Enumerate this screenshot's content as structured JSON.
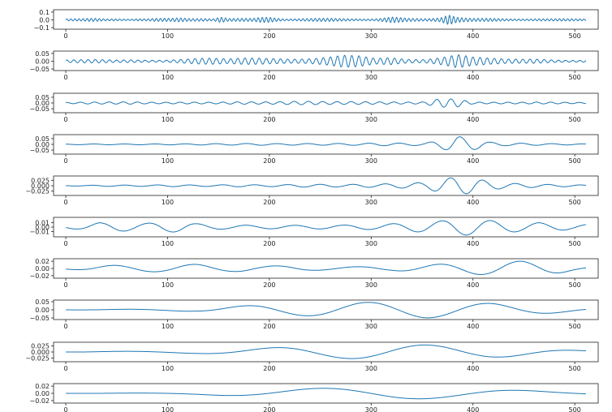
{
  "colors": {
    "line": "#1f77b4",
    "axis": "#222222"
  },
  "chart_data": [
    {
      "type": "line",
      "x_ticks": [
        0,
        100,
        200,
        300,
        400,
        500
      ],
      "xlim": [
        -12,
        523
      ],
      "ylim": [
        -0.12,
        0.13
      ],
      "y_ticks": [
        {
          "v": 0.1,
          "label": "0.1"
        },
        {
          "v": 0.0,
          "label": "0.0"
        },
        {
          "v": -0.1,
          "label": "−0.1"
        }
      ],
      "x": [
        0,
        8,
        16,
        24,
        32,
        40,
        48,
        56,
        64,
        72,
        80,
        88,
        96,
        104,
        112,
        120,
        128,
        136,
        144,
        152,
        160,
        168,
        176,
        184,
        192,
        200,
        208,
        216,
        224,
        232,
        240,
        248,
        256,
        264,
        272,
        280,
        288,
        296,
        304,
        312,
        320,
        328,
        336,
        344,
        352,
        360,
        368,
        376,
        384,
        392,
        400,
        408,
        416,
        424,
        432,
        440,
        448,
        456,
        464,
        472,
        480,
        488,
        496,
        504,
        511
      ],
      "envelope": [
        0.015,
        0.015,
        0.015,
        0.02,
        0.02,
        0.015,
        0.02,
        0.02,
        0.015,
        0.02,
        0.015,
        0.02,
        0.02,
        0.02,
        0.03,
        0.025,
        0.03,
        0.035,
        0.02,
        0.05,
        0.02,
        0.02,
        0.02,
        0.02,
        0.04,
        0.05,
        0.035,
        0.02,
        0.02,
        0.02,
        0.02,
        0.02,
        0.02,
        0.02,
        0.02,
        0.02,
        0.02,
        0.02,
        0.02,
        0.03,
        0.04,
        0.03,
        0.02,
        0.02,
        0.02,
        0.03,
        0.05,
        0.12,
        0.05,
        0.03,
        0.02,
        0.02,
        0.02,
        0.02,
        0.02,
        0.02,
        0.02,
        0.02,
        0.02,
        0.015,
        0.015,
        0.015,
        0.015,
        0.015,
        0.015
      ],
      "period": 4
    },
    {
      "type": "line",
      "x_ticks": [
        0,
        100,
        200,
        300,
        400,
        500
      ],
      "xlim": [
        -12,
        523
      ],
      "ylim": [
        -0.06,
        0.065
      ],
      "y_ticks": [
        {
          "v": 0.05,
          "label": "0.05"
        },
        {
          "v": 0.0,
          "label": "0.00"
        },
        {
          "v": -0.05,
          "label": "−0.05"
        }
      ],
      "x": [
        0,
        16,
        32,
        48,
        64,
        80,
        96,
        112,
        128,
        144,
        160,
        176,
        192,
        208,
        224,
        240,
        256,
        272,
        288,
        304,
        320,
        336,
        352,
        368,
        384,
        400,
        416,
        432,
        448,
        464,
        480,
        496,
        511
      ],
      "envelope": [
        0.008,
        0.01,
        0.012,
        0.01,
        0.015,
        0.012,
        0.01,
        0.015,
        0.02,
        0.02,
        0.015,
        0.025,
        0.03,
        0.03,
        0.025,
        0.025,
        0.03,
        0.04,
        0.035,
        0.02,
        0.03,
        0.02,
        0.02,
        0.04,
        0.06,
        0.03,
        0.02,
        0.015,
        0.015,
        0.02,
        0.015,
        0.01,
        0.01
      ],
      "period": 7
    },
    {
      "type": "line",
      "x_ticks": [
        0,
        100,
        200,
        300,
        400,
        500
      ],
      "xlim": [
        -12,
        523
      ],
      "ylim": [
        -0.085,
        0.085
      ],
      "y_ticks": [
        {
          "v": 0.05,
          "label": "0.05"
        },
        {
          "v": 0.0,
          "label": "0.00"
        },
        {
          "v": -0.05,
          "label": "−0.05"
        }
      ],
      "x": [
        0,
        16,
        32,
        48,
        64,
        80,
        96,
        112,
        128,
        144,
        160,
        176,
        192,
        208,
        224,
        240,
        256,
        272,
        288,
        304,
        320,
        336,
        352,
        368,
        384,
        400,
        416,
        432,
        448,
        464,
        480,
        496,
        511
      ],
      "envelope": [
        0.005,
        0.008,
        0.01,
        0.012,
        0.015,
        0.012,
        0.012,
        0.015,
        0.015,
        0.012,
        0.015,
        0.015,
        0.012,
        0.012,
        0.015,
        0.015,
        0.012,
        0.012,
        0.012,
        0.012,
        0.012,
        0.012,
        0.015,
        0.07,
        0.07,
        0.015,
        0.012,
        0.012,
        0.01,
        0.01,
        0.008,
        0.006,
        0.005
      ],
      "period": 14
    },
    {
      "type": "line",
      "x_ticks": [
        0,
        100,
        200,
        300,
        400,
        500
      ],
      "xlim": [
        -12,
        523
      ],
      "ylim": [
        -0.085,
        0.085
      ],
      "y_ticks": [
        {
          "v": 0.05,
          "label": "0.05"
        },
        {
          "v": 0.0,
          "label": "0.00"
        },
        {
          "v": -0.05,
          "label": "−0.05"
        }
      ],
      "x": [
        0,
        16,
        32,
        48,
        64,
        80,
        96,
        112,
        128,
        144,
        160,
        176,
        192,
        208,
        224,
        240,
        256,
        272,
        288,
        304,
        320,
        336,
        352,
        368,
        384,
        400,
        416,
        432,
        448,
        464,
        480,
        496,
        511
      ],
      "envelope": [
        0.003,
        0.004,
        0.005,
        0.005,
        0.006,
        0.006,
        0.008,
        0.008,
        0.01,
        0.012,
        0.012,
        0.015,
        0.015,
        0.012,
        0.012,
        0.012,
        0.012,
        0.012,
        0.012,
        0.015,
        0.015,
        0.012,
        0.012,
        0.04,
        0.075,
        0.05,
        0.02,
        0.012,
        0.01,
        0.008,
        0.006,
        0.005,
        0.004
      ],
      "period": 30
    },
    {
      "type": "line",
      "x_ticks": [
        0,
        100,
        200,
        300,
        400,
        500
      ],
      "xlim": [
        -12,
        523
      ],
      "ylim": [
        -0.045,
        0.045
      ],
      "y_ticks": [
        {
          "v": 0.025,
          "label": "0.025"
        },
        {
          "v": 0.0,
          "label": "0.000"
        },
        {
          "v": -0.025,
          "label": "−0.025"
        }
      ],
      "x": [
        0,
        16,
        32,
        48,
        64,
        80,
        96,
        112,
        128,
        144,
        160,
        176,
        192,
        208,
        224,
        240,
        256,
        272,
        288,
        304,
        320,
        336,
        352,
        368,
        384,
        400,
        416,
        432,
        448,
        464,
        480,
        496,
        511
      ],
      "envelope": [
        0.002,
        0.003,
        0.005,
        0.006,
        0.006,
        0.006,
        0.008,
        0.008,
        0.006,
        0.006,
        0.008,
        0.008,
        0.006,
        0.006,
        0.008,
        0.008,
        0.008,
        0.006,
        0.008,
        0.008,
        0.01,
        0.012,
        0.015,
        0.03,
        0.04,
        0.035,
        0.02,
        0.012,
        0.01,
        0.008,
        0.006,
        0.005,
        0.004
      ],
      "period": 32
    },
    {
      "type": "line",
      "x_ticks": [
        0,
        100,
        200,
        300,
        400,
        500
      ],
      "xlim": [
        -12,
        523
      ],
      "ylim": [
        -0.022,
        0.022
      ],
      "y_ticks": [
        {
          "v": 0.01,
          "label": "0.01"
        },
        {
          "v": 0.0,
          "label": "0.00"
        },
        {
          "v": -0.01,
          "label": "−0.01"
        }
      ],
      "x": [
        0,
        16,
        32,
        48,
        64,
        80,
        96,
        112,
        128,
        144,
        160,
        176,
        192,
        208,
        224,
        240,
        256,
        272,
        288,
        304,
        320,
        336,
        352,
        368,
        384,
        400,
        416,
        432,
        448,
        464,
        480,
        496,
        511
      ],
      "envelope": [
        0.006,
        0.01,
        0.018,
        0.018,
        0.015,
        0.015,
        0.018,
        0.018,
        0.012,
        0.008,
        0.006,
        0.006,
        0.005,
        0.005,
        0.005,
        0.005,
        0.005,
        0.005,
        0.006,
        0.006,
        0.008,
        0.01,
        0.012,
        0.014,
        0.018,
        0.018,
        0.015,
        0.012,
        0.01,
        0.01,
        0.008,
        0.006,
        0.006
      ],
      "period": 48
    },
    {
      "type": "line",
      "x_ticks": [
        0,
        100,
        200,
        300,
        400,
        500
      ],
      "xlim": [
        -12,
        523
      ],
      "ylim": [
        -0.027,
        0.027
      ],
      "y_ticks": [
        {
          "v": 0.02,
          "label": "0.02"
        },
        {
          "v": 0.0,
          "label": "0.00"
        },
        {
          "v": -0.02,
          "label": "−0.02"
        }
      ],
      "x": [
        0,
        16,
        32,
        48,
        64,
        80,
        96,
        112,
        128,
        144,
        160,
        176,
        192,
        208,
        224,
        240,
        256,
        272,
        288,
        304,
        320,
        336,
        352,
        368,
        384,
        400,
        416,
        432,
        448,
        464,
        480,
        496,
        511
      ],
      "envelope": [
        0.003,
        0.006,
        0.01,
        0.012,
        0.012,
        0.012,
        0.012,
        0.014,
        0.014,
        0.012,
        0.01,
        0.01,
        0.008,
        0.008,
        0.008,
        0.006,
        0.005,
        0.005,
        0.005,
        0.006,
        0.006,
        0.008,
        0.01,
        0.012,
        0.014,
        0.016,
        0.018,
        0.02,
        0.02,
        0.018,
        0.014,
        0.008,
        0.004
      ],
      "period": 80
    },
    {
      "type": "line",
      "x_ticks": [
        0,
        100,
        200,
        300,
        400,
        500
      ],
      "xlim": [
        -12,
        523
      ],
      "ylim": [
        -0.06,
        0.06
      ],
      "y_ticks": [
        {
          "v": 0.05,
          "label": "0.05"
        },
        {
          "v": 0.0,
          "label": "0.00"
        },
        {
          "v": -0.05,
          "label": "−0.05"
        }
      ],
      "x": [
        0,
        32,
        64,
        96,
        128,
        160,
        192,
        224,
        256,
        288,
        320,
        352,
        384,
        416,
        448,
        480,
        511
      ],
      "envelope": [
        0.0,
        0.002,
        0.004,
        0.006,
        0.01,
        0.02,
        0.03,
        0.035,
        0.04,
        0.045,
        0.048,
        0.05,
        0.045,
        0.04,
        0.03,
        0.02,
        0.01
      ],
      "period": 120
    },
    {
      "type": "line",
      "x_ticks": [
        0,
        100,
        200,
        300,
        400,
        500
      ],
      "xlim": [
        -12,
        523
      ],
      "ylim": [
        -0.04,
        0.04
      ],
      "y_ticks": [
        {
          "v": 0.025,
          "label": "0.025"
        },
        {
          "v": 0.0,
          "label": "0.000"
        },
        {
          "v": -0.025,
          "label": "−0.025"
        }
      ],
      "x": [
        0,
        32,
        64,
        96,
        128,
        160,
        192,
        224,
        256,
        288,
        320,
        352,
        384,
        416,
        448,
        480,
        511
      ],
      "envelope": [
        0.0,
        0.002,
        0.003,
        0.004,
        0.006,
        0.01,
        0.016,
        0.022,
        0.026,
        0.03,
        0.032,
        0.032,
        0.03,
        0.026,
        0.02,
        0.012,
        0.006
      ],
      "period": 150
    },
    {
      "type": "line",
      "x_ticks": [
        0,
        100,
        200,
        300,
        400,
        500
      ],
      "xlim": [
        -12,
        523
      ],
      "ylim": [
        -0.027,
        0.027
      ],
      "y_ticks": [
        {
          "v": 0.02,
          "label": "0.02"
        },
        {
          "v": 0.0,
          "label": "0.00"
        },
        {
          "v": -0.02,
          "label": "−0.02"
        }
      ],
      "x": [
        0,
        32,
        64,
        96,
        128,
        160,
        192,
        224,
        256,
        288,
        320,
        352,
        384,
        416,
        448,
        480,
        511
      ],
      "envelope": [
        0.0,
        0.0,
        0.001,
        0.002,
        0.004,
        0.008,
        0.012,
        0.016,
        0.019,
        0.021,
        0.022,
        0.021,
        0.019,
        0.016,
        0.012,
        0.008,
        0.006
      ],
      "period": 200
    }
  ]
}
